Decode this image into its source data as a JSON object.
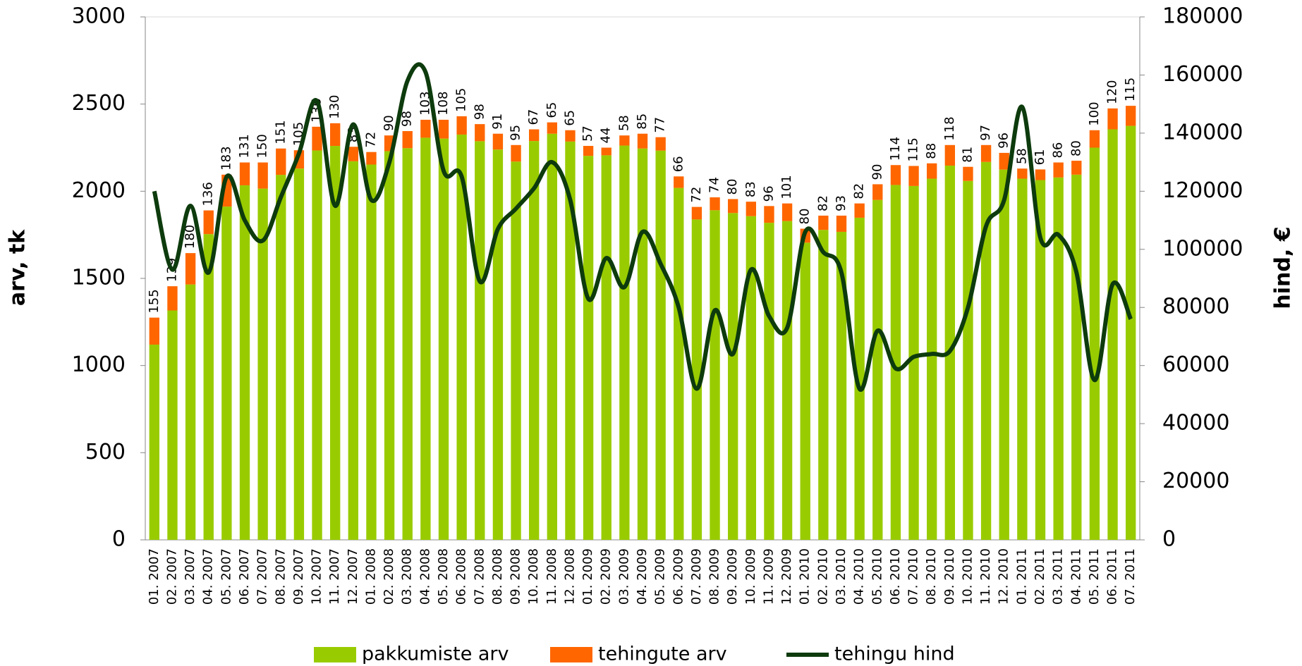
{
  "chart_data": {
    "type": "bar",
    "stacked": true,
    "ylabel": "arv, tk",
    "y2label": "hind, €",
    "categories": [
      "01. 2007",
      "02. 2007",
      "03. 2007",
      "04. 2007",
      "05. 2007",
      "06. 2007",
      "07. 2007",
      "08. 2007",
      "09. 2007",
      "10. 2007",
      "11. 2007",
      "12. 2007",
      "01. 2008",
      "02. 2008",
      "03. 2008",
      "04. 2008",
      "05. 2008",
      "06. 2008",
      "07. 2008",
      "08. 2008",
      "09. 2008",
      "10. 2008",
      "11. 2008",
      "12. 2008",
      "01. 2009",
      "02. 2009",
      "03. 2009",
      "04. 2009",
      "05. 2009",
      "06. 2009",
      "07. 2009",
      "08. 2009",
      "09. 2009",
      "10. 2009",
      "11. 2009",
      "12. 2009",
      "01. 2010",
      "02. 2010",
      "03. 2010",
      "04. 2010",
      "05. 2010",
      "06. 2010",
      "07. 2010",
      "08. 2010",
      "09. 2010",
      "10. 2010",
      "11. 2010",
      "12. 2010",
      "01. 2011",
      "02. 2011",
      "03. 2011",
      "04. 2011",
      "05. 2011",
      "06. 2011",
      "07. 2011"
    ],
    "series": [
      {
        "name": "pakkumiste arv",
        "type": "bar",
        "color": "#99cc00",
        "values": [
          1120,
          1316,
          1465,
          1754,
          1912,
          2034,
          2015,
          2094,
          2130,
          2234,
          2260,
          2172,
          2153,
          2230,
          2247,
          2307,
          2302,
          2325,
          2287,
          2239,
          2170,
          2288,
          2330,
          2285,
          2203,
          2206,
          2262,
          2245,
          2233,
          2019,
          1838,
          1891,
          1875,
          1857,
          1819,
          1829,
          1705,
          1778,
          1767,
          1848,
          1950,
          2036,
          2030,
          2072,
          2147,
          2059,
          2168,
          2124,
          2072,
          2064,
          2079,
          2095,
          2250,
          2355,
          2375
        ]
      },
      {
        "name": "tehingute arv",
        "type": "bar",
        "color": "#ff6600",
        "data_labels": true,
        "values": [
          155,
          139,
          180,
          136,
          183,
          131,
          150,
          151,
          105,
          136,
          130,
          83,
          72,
          90,
          98,
          103,
          108,
          105,
          98,
          91,
          95,
          67,
          65,
          65,
          57,
          44,
          58,
          85,
          77,
          66,
          72,
          74,
          80,
          83,
          96,
          101,
          80,
          82,
          93,
          82,
          90,
          114,
          115,
          88,
          118,
          81,
          97,
          96,
          58,
          61,
          86,
          80,
          100,
          120,
          115
        ]
      },
      {
        "name": "tehingu hind",
        "type": "line",
        "axis": "y2",
        "color": "#0d3b0d",
        "values": [
          120000,
          93000,
          115000,
          92000,
          125000,
          110000,
          103000,
          118000,
          133000,
          151000,
          115000,
          143000,
          117000,
          130000,
          158000,
          161000,
          127000,
          125000,
          89000,
          107000,
          114000,
          121000,
          130000,
          117000,
          83000,
          97000,
          87000,
          106000,
          95000,
          80000,
          52000,
          79000,
          64000,
          93000,
          77000,
          73000,
          106000,
          99000,
          92000,
          52000,
          72000,
          59000,
          63000,
          64000,
          65000,
          80000,
          108000,
          117000,
          149000,
          104000,
          105000,
          92000,
          55000,
          88000,
          76000
        ]
      }
    ],
    "ylim": [
      0,
      3000
    ],
    "yticks": [
      0,
      500,
      1000,
      1500,
      2000,
      2500,
      3000
    ],
    "y2lim": [
      0,
      180000
    ],
    "y2ticks": [
      0,
      20000,
      40000,
      60000,
      80000,
      100000,
      120000,
      140000,
      160000,
      180000
    ],
    "grid": false,
    "legend": "bottom"
  }
}
